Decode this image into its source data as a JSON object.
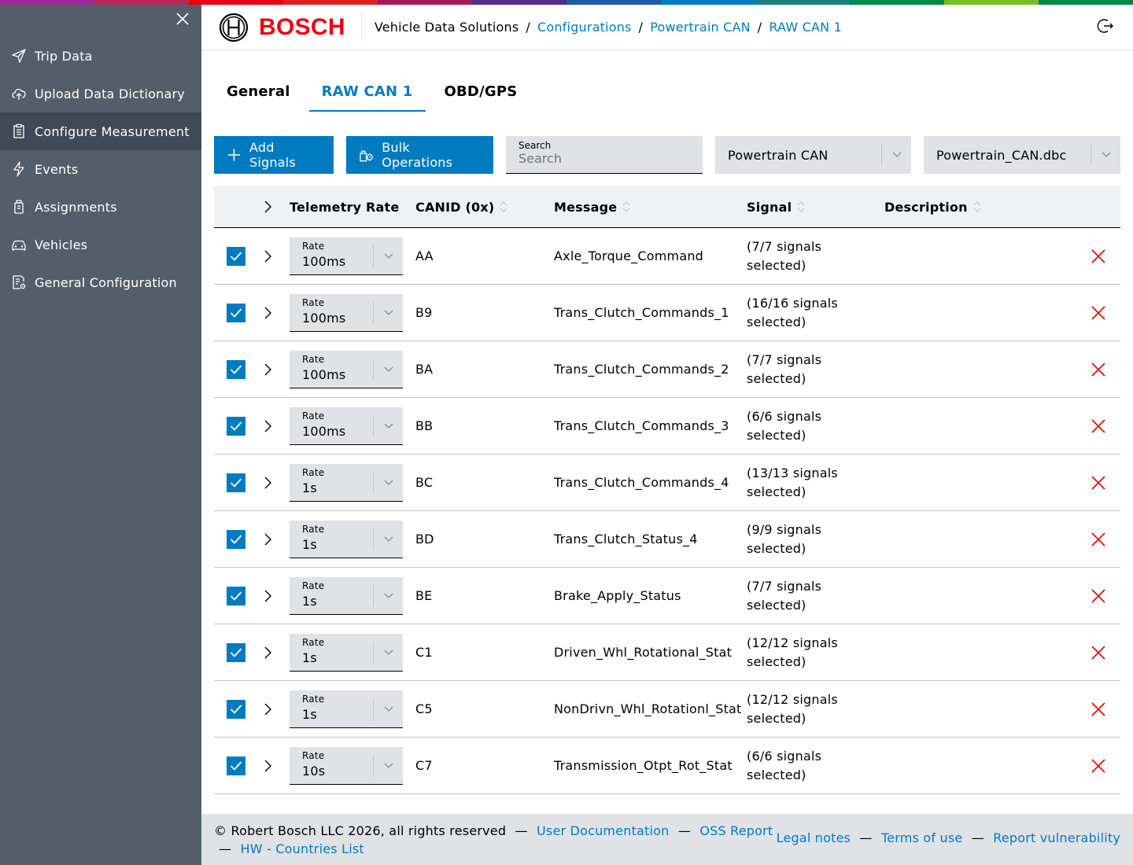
{
  "colors": {
    "accent": "#007bc0",
    "sidebar_bg": "#525f6b",
    "sidebar_active": "#3e4a55",
    "bosch_red": "#ea0016",
    "delete_red": "#e00000",
    "supergraphic": [
      "#9e2896",
      "#b6285a",
      "#ea0016",
      "#e02020",
      "#a3195b",
      "#4f2f8e",
      "#1e5aa8",
      "#007bc0",
      "#18837e",
      "#00884a",
      "#78be20",
      "#00884a"
    ]
  },
  "sidebar": {
    "close_icon": "close-icon",
    "items": [
      {
        "label": "Trip Data",
        "icon": "send-icon"
      },
      {
        "label": "Upload Data Dictionary",
        "icon": "cloud-upload-icon"
      },
      {
        "label": "Configure Measurement",
        "icon": "clipboard-icon",
        "active": true
      },
      {
        "label": "Events",
        "icon": "lightning-icon"
      },
      {
        "label": "Assignments",
        "icon": "assignment-icon"
      },
      {
        "label": "Vehicles",
        "icon": "car-icon"
      },
      {
        "label": "General Configuration",
        "icon": "settings-document-icon"
      }
    ]
  },
  "header": {
    "logo_text": "BOSCH",
    "breadcrumb": {
      "root": "Vehicle Data Solutions",
      "links": [
        "Configurations",
        "Powertrain CAN",
        "RAW CAN 1"
      ]
    },
    "logout_icon": "logout-icon"
  },
  "tabs": [
    {
      "label": "General"
    },
    {
      "label": "RAW CAN 1",
      "active": true
    },
    {
      "label": "OBD/GPS"
    }
  ],
  "toolbar": {
    "add_label": "Add Signals",
    "bulk_label": "Bulk Operations",
    "search_label": "Search",
    "search_placeholder": "Search",
    "network_value": "Powertrain CAN",
    "dbc_value": "Powertrain_CAN.dbc"
  },
  "table": {
    "headers": {
      "rate": "Telemetry Rate",
      "canid": "CANID (0x)",
      "message": "Message",
      "signal": "Signal",
      "description": "Description"
    },
    "rate_label": "Rate",
    "rows": [
      {
        "rate": "100ms",
        "canid": "AA",
        "message": "Axle_Torque_Command",
        "signal": "(7/7 signals selected)",
        "description": ""
      },
      {
        "rate": "100ms",
        "canid": "B9",
        "message": "Trans_Clutch_Commands_1",
        "signal": "(16/16 signals selected)",
        "description": ""
      },
      {
        "rate": "100ms",
        "canid": "BA",
        "message": "Trans_Clutch_Commands_2",
        "signal": "(7/7 signals selected)",
        "description": ""
      },
      {
        "rate": "100ms",
        "canid": "BB",
        "message": "Trans_Clutch_Commands_3",
        "signal": "(6/6 signals selected)",
        "description": ""
      },
      {
        "rate": "1s",
        "canid": "BC",
        "message": "Trans_Clutch_Commands_4",
        "signal": "(13/13 signals selected)",
        "description": ""
      },
      {
        "rate": "1s",
        "canid": "BD",
        "message": "Trans_Clutch_Status_4",
        "signal": "(9/9 signals selected)",
        "description": ""
      },
      {
        "rate": "1s",
        "canid": "BE",
        "message": "Brake_Apply_Status",
        "signal": "(7/7 signals selected)",
        "description": ""
      },
      {
        "rate": "1s",
        "canid": "C1",
        "message": "Driven_Whl_Rotational_Stat",
        "signal": "(12/12 signals selected)",
        "description": ""
      },
      {
        "rate": "1s",
        "canid": "C5",
        "message": "NonDrivn_Whl_Rotationl_Stat",
        "signal": "(12/12 signals selected)",
        "description": ""
      },
      {
        "rate": "10s",
        "canid": "C7",
        "message": "Transmission_Otpt_Rot_Stat",
        "signal": "(6/6 signals selected)",
        "description": ""
      }
    ]
  },
  "footer": {
    "copyright": "© Robert Bosch LLC 2026, all rights reserved",
    "user_doc": "User Documentation",
    "oss_report": "OSS Report",
    "hw_countries": "HW - Countries List",
    "legal": "Legal notes",
    "terms": "Terms of use",
    "vuln": "Report vulnerability",
    "separator": "—"
  }
}
